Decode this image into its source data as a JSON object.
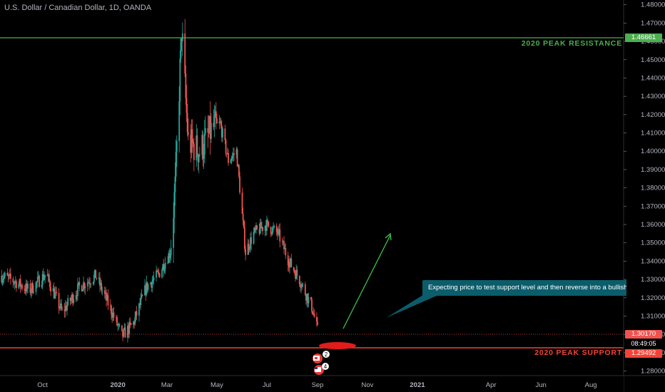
{
  "header": {
    "title": "U.S. Dollar / Canadian Dollar, 1D, OANDA"
  },
  "annotation": {
    "callout_text": "Expecting price to test support level and then reverse into a bullish",
    "resistance_label": "2020 PEAK RESISTANCE",
    "support_label": "2020 PEAK SUPPORT"
  },
  "price_tags": {
    "resistance": "1.46661",
    "last": "1.30170",
    "countdown": "08:49:05",
    "support": "1.29492"
  },
  "events": {
    "badge_a": "2",
    "badge_b": "4"
  },
  "colors": {
    "up": "#26a69a",
    "down": "#ef5350",
    "resistance": "#4caf50",
    "support": "#f44336",
    "callout": "#0b5d6b",
    "arrow": "#3fd14a"
  },
  "chart_data": {
    "type": "candlestick",
    "title": "U.S. Dollar / Canadian Dollar, 1D, OANDA",
    "x_ticks": [
      "Oct",
      "2020",
      "Mar",
      "May",
      "Jul",
      "Sep",
      "Nov",
      "2021",
      "Apr",
      "Jun",
      "Aug"
    ],
    "y_ticks": [
      1.48,
      1.47,
      1.46,
      1.45,
      1.44,
      1.43,
      1.42,
      1.41,
      1.4,
      1.39,
      1.38,
      1.37,
      1.36,
      1.35,
      1.34,
      1.33,
      1.32,
      1.31,
      1.3,
      1.29,
      1.28
    ],
    "ylim": [
      1.2775,
      1.4826
    ],
    "levels": {
      "resistance": 1.46661,
      "support": 1.29492,
      "last": 1.3017
    },
    "path_points": [
      [
        "2019-08-12",
        1.332
      ],
      [
        "2019-08-28",
        1.329
      ],
      [
        "2019-09-15",
        1.324
      ],
      [
        "2019-10-05",
        1.333
      ],
      [
        "2019-10-25",
        1.312
      ],
      [
        "2019-11-15",
        1.326
      ],
      [
        "2019-12-05",
        1.332
      ],
      [
        "2019-12-25",
        1.312
      ],
      [
        "2020-01-06",
        1.299
      ],
      [
        "2020-01-20",
        1.306
      ],
      [
        "2020-02-05",
        1.326
      ],
      [
        "2020-02-20",
        1.333
      ],
      [
        "2020-03-05",
        1.345
      ],
      [
        "2020-03-11",
        1.38
      ],
      [
        "2020-03-19",
        1.466
      ],
      [
        "2020-03-27",
        1.405
      ],
      [
        "2020-04-10",
        1.4
      ],
      [
        "2020-04-25",
        1.412
      ],
      [
        "2020-05-05",
        1.415
      ],
      [
        "2020-05-15",
        1.395
      ],
      [
        "2020-05-25",
        1.4
      ],
      [
        "2020-06-05",
        1.345
      ],
      [
        "2020-06-15",
        1.355
      ],
      [
        "2020-06-30",
        1.36
      ],
      [
        "2020-07-15",
        1.355
      ],
      [
        "2020-07-28",
        1.34
      ],
      [
        "2020-08-10",
        1.33
      ],
      [
        "2020-08-25",
        1.315
      ],
      [
        "2020-09-01",
        1.302
      ]
    ]
  }
}
